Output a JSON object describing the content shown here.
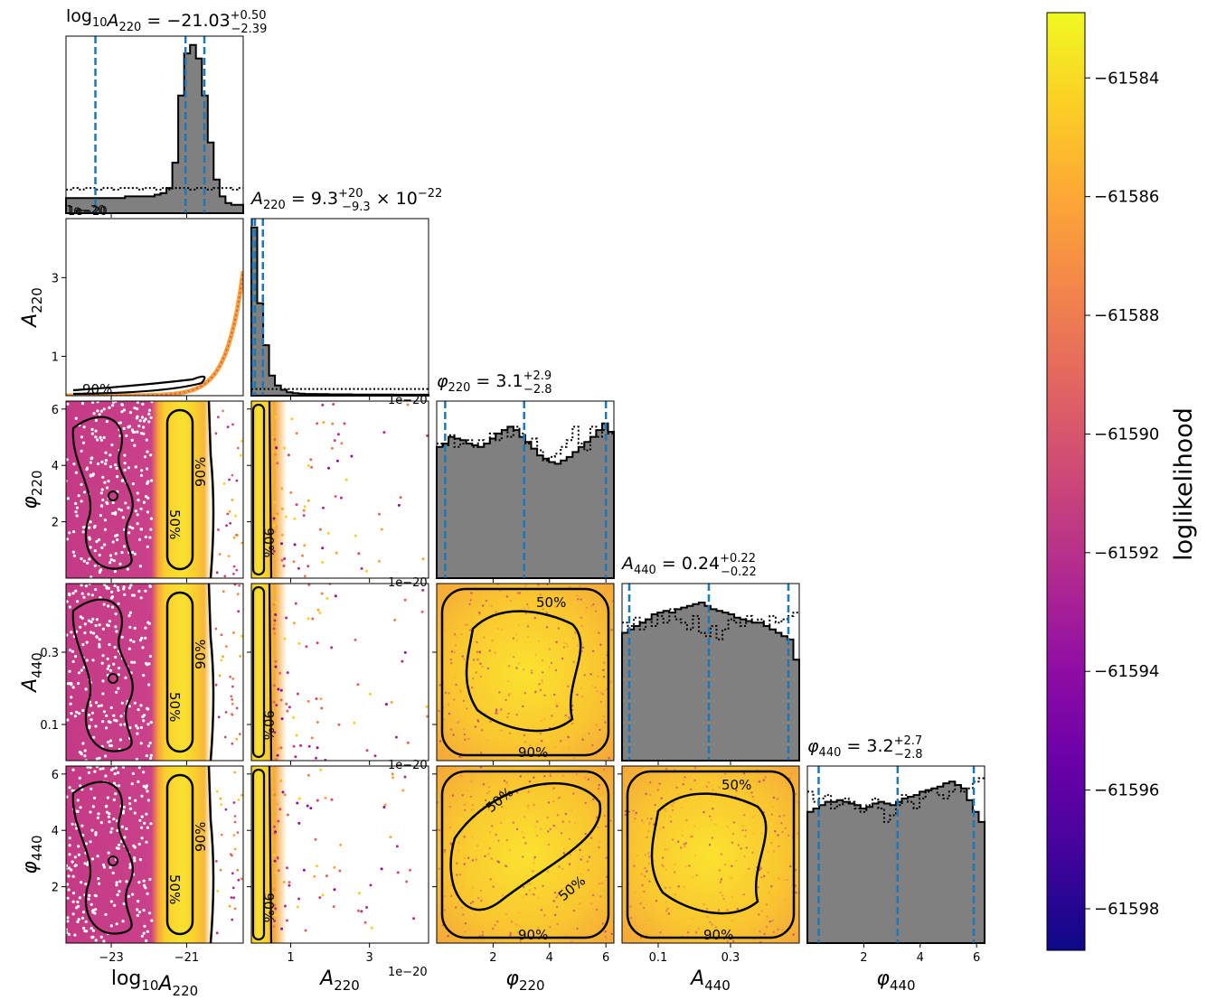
{
  "chart_data": {
    "type": "corner",
    "params": [
      {
        "symbol": "log",
        "sub": "10",
        "symbol2": "A",
        "sub2": "220",
        "label_parts": [
          [
            "log",
            "10"
          ],
          [
            "A",
            "220"
          ]
        ]
      },
      {
        "label_parts": [
          [
            "A",
            "220"
          ]
        ]
      },
      {
        "label_parts": [
          [
            "φ",
            "220"
          ]
        ]
      },
      {
        "label_parts": [
          [
            "A",
            "440"
          ]
        ]
      },
      {
        "label_parts": [
          [
            "φ",
            "440"
          ]
        ]
      }
    ],
    "titles": [
      {
        "main": "log",
        "main_sub": "10",
        "sym": "A",
        "sym_sub": "220",
        "value": " = −21.03",
        "sup": "+0.50",
        "sub": "−2.39",
        "tail": ""
      },
      {
        "main": "",
        "main_sub": "",
        "sym": "A",
        "sym_sub": "220",
        "value": " = 9.3",
        "sup": "+20",
        "sub": "−9.3",
        "tail": " × 10",
        "tail_sup": "−22"
      },
      {
        "main": "",
        "main_sub": "",
        "sym": "φ",
        "sym_sub": "220",
        "value": " = 3.1",
        "sup": "+2.9",
        "sub": "−2.8",
        "tail": ""
      },
      {
        "main": "",
        "main_sub": "",
        "sym": "A",
        "sym_sub": "440",
        "value": " = 0.24",
        "sup": "+0.22",
        "sub": "−0.22",
        "tail": ""
      },
      {
        "main": "",
        "main_sub": "",
        "sym": "φ",
        "sym_sub": "440",
        "value": " = 3.2",
        "sup": "+2.7",
        "sub": "−2.8",
        "tail": ""
      }
    ],
    "ranges": [
      [
        -24.2,
        -19.5
      ],
      [
        0,
        4.5e-20
      ],
      [
        0,
        6.283
      ],
      [
        0,
        0.49
      ],
      [
        0,
        6.283
      ]
    ],
    "xticks": [
      {
        "values": [
          -23,
          -21
        ],
        "labels": [
          "−23",
          "−21"
        ]
      },
      {
        "values": [
          1e-20,
          3e-20
        ],
        "labels": [
          "1",
          "3"
        ]
      },
      {
        "values": [
          2,
          4,
          6
        ],
        "labels": [
          "2",
          "4",
          "6"
        ]
      },
      {
        "values": [
          0.1,
          0.3
        ],
        "labels": [
          "0.1",
          "0.3"
        ]
      },
      {
        "values": [
          2,
          4,
          6
        ],
        "labels": [
          "2",
          "4",
          "6"
        ]
      }
    ],
    "yticks": [
      null,
      {
        "values": [
          1e-20,
          3e-20
        ],
        "labels": [
          "1",
          "3"
        ]
      },
      {
        "values": [
          2,
          4,
          6
        ],
        "labels": [
          "2",
          "4",
          "6"
        ]
      },
      {
        "values": [
          0.1,
          0.3
        ],
        "labels": [
          "0.1",
          "0.3"
        ]
      },
      {
        "values": [
          2,
          4,
          6
        ],
        "labels": [
          "2",
          "4",
          "6"
        ]
      }
    ],
    "offset_text": "1e−20",
    "quantiles": [
      [
        -23.42,
        -21.03,
        -20.53
      ],
      [
        0,
        9.3e-22,
        2.93e-21
      ],
      [
        0.3,
        3.1,
        6.0
      ],
      [
        0.02,
        0.24,
        0.46
      ],
      [
        0.4,
        3.2,
        5.9
      ]
    ],
    "hist_posterior": [
      [
        0.09,
        0.09,
        0.09,
        0.09,
        0.09,
        0.09,
        0.09,
        0.09,
        0.09,
        0.09,
        0.1,
        0.1,
        0.1,
        0.1,
        0.1,
        0.11,
        0.12,
        0.15,
        0.3,
        0.7,
        0.95,
        1.0,
        0.92,
        0.7,
        0.42,
        0.2,
        0.1,
        0.06,
        0.05,
        0.05
      ],
      [
        1.0,
        0.55,
        0.3,
        0.12,
        0.06,
        0.035,
        0.02,
        0.015,
        0.012,
        0.01,
        0.01,
        0.009,
        0.009,
        0.008,
        0.008,
        0.008,
        0.008,
        0.007,
        0.007,
        0.007,
        0.007,
        0.007,
        0.007,
        0.007,
        0.006,
        0.006,
        0.006,
        0.006,
        0.006,
        0.006
      ],
      [
        0.78,
        0.8,
        0.84,
        0.83,
        0.82,
        0.8,
        0.79,
        0.78,
        0.8,
        0.83,
        0.86,
        0.88,
        0.9,
        0.88,
        0.84,
        0.81,
        0.77,
        0.73,
        0.71,
        0.69,
        0.68,
        0.7,
        0.72,
        0.75,
        0.78,
        0.81,
        0.84,
        0.88,
        0.92,
        0.87
      ],
      [
        0.76,
        0.78,
        0.8,
        0.82,
        0.84,
        0.87,
        0.88,
        0.89,
        0.88,
        0.9,
        0.91,
        0.92,
        0.93,
        0.94,
        0.92,
        0.9,
        0.89,
        0.88,
        0.87,
        0.85,
        0.84,
        0.83,
        0.82,
        0.82,
        0.8,
        0.78,
        0.76,
        0.74,
        0.72,
        0.6
      ],
      [
        0.78,
        0.8,
        0.82,
        0.84,
        0.84,
        0.85,
        0.84,
        0.83,
        0.82,
        0.8,
        0.81,
        0.83,
        0.84,
        0.83,
        0.82,
        0.84,
        0.86,
        0.87,
        0.88,
        0.9,
        0.91,
        0.92,
        0.93,
        0.95,
        0.96,
        0.94,
        0.92,
        0.85,
        0.78,
        0.72
      ]
    ],
    "hist_prior": [
      [
        0.14,
        0.15,
        0.14,
        0.15,
        0.15,
        0.14,
        0.15,
        0.15,
        0.14,
        0.15,
        0.15,
        0.15,
        0.14,
        0.15,
        0.15,
        0.14,
        0.15,
        0.14,
        0.15,
        0.15,
        0.15,
        0.14,
        0.15,
        0.15,
        0.14,
        0.15,
        0.15,
        0.15,
        0.14,
        0.15
      ],
      [
        0.04,
        0.04,
        0.04,
        0.04,
        0.04,
        0.04,
        0.04,
        0.04,
        0.04,
        0.04,
        0.04,
        0.04,
        0.04,
        0.04,
        0.04,
        0.04,
        0.04,
        0.04,
        0.04,
        0.04,
        0.04,
        0.04,
        0.04,
        0.04,
        0.04,
        0.04,
        0.04,
        0.04,
        0.04,
        0.04
      ],
      [
        0.8,
        0.79,
        0.85,
        0.78,
        0.8,
        0.82,
        0.78,
        0.82,
        0.8,
        0.86,
        0.82,
        0.88,
        0.84,
        0.9,
        0.86,
        0.8,
        0.83,
        0.76,
        0.7,
        0.72,
        0.74,
        0.78,
        0.82,
        0.9,
        0.8,
        0.76,
        0.9,
        0.84,
        0.88,
        0.86
      ],
      [
        0.82,
        0.8,
        0.85,
        0.78,
        0.84,
        0.8,
        0.86,
        0.82,
        0.9,
        0.84,
        0.82,
        0.78,
        0.86,
        0.76,
        0.74,
        0.8,
        0.72,
        0.78,
        0.84,
        0.82,
        0.8,
        0.86,
        0.82,
        0.84,
        0.8,
        0.86,
        0.82,
        0.84,
        0.86,
        0.88
      ],
      [
        0.9,
        0.84,
        0.86,
        0.88,
        0.8,
        0.82,
        0.86,
        0.84,
        0.8,
        0.78,
        0.82,
        0.86,
        0.8,
        0.72,
        0.76,
        0.82,
        0.88,
        0.84,
        0.8,
        0.86,
        0.9,
        0.92,
        0.88,
        0.86,
        0.9,
        0.94,
        0.9,
        0.92,
        0.96,
        0.98
      ]
    ],
    "contour_labels": [
      "50%",
      "90%"
    ],
    "colorbar": {
      "label": "loglikelihood",
      "colormap": "plasma",
      "range": [
        -61598.7,
        -61582.9
      ],
      "ticks": [
        -61584,
        -61586,
        -61588,
        -61590,
        -61592,
        -61594,
        -61596,
        -61598
      ],
      "tick_labels": [
        "−61584",
        "−61586",
        "−61588",
        "−61590",
        "−61592",
        "−61594",
        "−61596",
        "−61598"
      ]
    },
    "colors": {
      "hist_fill": "#808080",
      "quantile_line": "#1f77b4",
      "contour": "#000000",
      "plasma": [
        "#0d0887",
        "#41049d",
        "#6a00a8",
        "#8f0da4",
        "#b12a90",
        "#cc4778",
        "#e16462",
        "#f2844b",
        "#fca636",
        "#fcce25",
        "#f0f921"
      ]
    }
  }
}
